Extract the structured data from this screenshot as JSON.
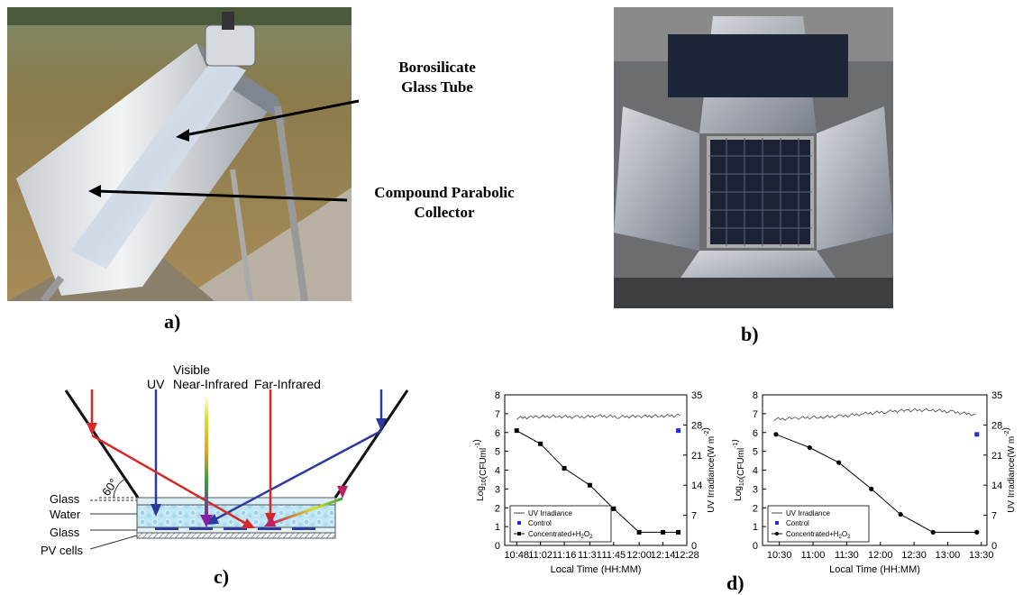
{
  "panels": {
    "a": {
      "label": "a)",
      "annotations": [
        "Borosilicate",
        "Glass Tube",
        "Compound Parabolic",
        "Collector"
      ]
    },
    "b": {
      "label": "b)"
    },
    "c": {
      "label": "c)",
      "rays": [
        "UV",
        "Visible",
        "Near-Infrared",
        "Far-Infrared"
      ],
      "angle": "60°",
      "layers": [
        "Glass",
        "Water",
        "Glass",
        "PV cells"
      ]
    },
    "d": {
      "label": "d)"
    }
  },
  "colors": {
    "uv": "#2b3a9c",
    "far_ir": "#d62828",
    "control": "#1f2bd6"
  },
  "chart_data": [
    {
      "type": "line",
      "xlabel": "Local Time (HH:MM)",
      "ylabel": "Log10(CFUml-1)",
      "ylabel_main": "Log",
      "ylabel_sub": "10",
      "ylabel_rest": "(CFUml",
      "ylabel_sup": "-1",
      "ylabel_end": ")",
      "y2label": "UV Irradiance(W m-2)",
      "y2label_main": "UV Irradiance(W m",
      "y2label_sup": "-2",
      "y2label_end": ")",
      "x_ticks": [
        "10:48",
        "11:02",
        "11:16",
        "11:31",
        "11:45",
        "12:00",
        "12:14",
        "12:28"
      ],
      "x_tick_minutes": [
        648,
        662,
        676,
        691,
        705,
        720,
        734,
        748
      ],
      "xlim_minutes": [
        641,
        748
      ],
      "ylim": [
        0,
        8
      ],
      "y_ticks": [
        "0",
        "1",
        "2",
        "3",
        "4",
        "5",
        "6",
        "7",
        "8"
      ],
      "y2lim": [
        0,
        35
      ],
      "y2_ticks": [
        "0",
        "7",
        "14",
        "21",
        "28",
        "35"
      ],
      "legend": [
        "UV Irradiance",
        "Control",
        "Concentrated+H2O2"
      ],
      "legend_conc_main": "Concentrated+H",
      "legend_conc_sub1": "2",
      "legend_conc_o": "O",
      "legend_conc_sub2": "2",
      "series": [
        {
          "name": "UV Irradiance",
          "axis": "right",
          "x_minutes": [
            648,
            660,
            672,
            684,
            696,
            708,
            720,
            732,
            744
          ],
          "values": [
            29.6,
            29.9,
            30.0,
            29.8,
            30.1,
            29.9,
            30.0,
            30.1,
            30.2
          ]
        },
        {
          "name": "Control",
          "x_minutes": [
            743
          ],
          "values": [
            6.1
          ]
        },
        {
          "name": "Concentrated+H2O2",
          "x_minutes": [
            648,
            662,
            676,
            691,
            705,
            720,
            734,
            743
          ],
          "values": [
            6.1,
            5.4,
            4.1,
            3.2,
            1.95,
            0.7,
            0.7,
            0.7
          ]
        }
      ]
    },
    {
      "type": "line",
      "xlabel": "Local Time (HH:MM)",
      "ylabel": "Log10(CFUml-1)",
      "ylabel_main": "Log",
      "ylabel_sub": "10",
      "ylabel_rest": "(CFUml",
      "ylabel_sup": "-1",
      "ylabel_end": ")",
      "y2label": "UV Irradiance(W m-2)",
      "y2label_main": "UV Irradiance(W m",
      "y2label_sup": "-2",
      "y2label_end": ")",
      "x_ticks": [
        "10:30",
        "11:00",
        "11:30",
        "12:00",
        "12:30",
        "13:00",
        "13:30"
      ],
      "x_tick_minutes": [
        630,
        660,
        690,
        720,
        750,
        780,
        810
      ],
      "xlim_minutes": [
        615,
        815
      ],
      "ylim": [
        0,
        8
      ],
      "y_ticks": [
        "0",
        "1",
        "2",
        "3",
        "4",
        "5",
        "6",
        "7",
        "8"
      ],
      "y2lim": [
        0,
        35
      ],
      "y2_ticks": [
        "0",
        "7",
        "14",
        "21",
        "28",
        "35"
      ],
      "legend": [
        "UV Irradiance",
        "Control",
        "Concentrated+H2O2"
      ],
      "legend_conc_main": "Concentrated+H",
      "legend_conc_sub1": "2",
      "legend_conc_o": "O",
      "legend_conc_sub2": "2",
      "series": [
        {
          "name": "UV Irradiance",
          "axis": "right",
          "x_minutes": [
            625,
            645,
            665,
            685,
            705,
            725,
            745,
            765,
            785,
            805
          ],
          "values": [
            29.3,
            29.6,
            29.8,
            30.0,
            30.6,
            31.1,
            31.4,
            31.5,
            31.0,
            30.4
          ]
        },
        {
          "name": "Control",
          "x_minutes": [
            806
          ],
          "values": [
            5.9
          ]
        },
        {
          "name": "Concentrated+H2O2",
          "x_minutes": [
            627,
            657,
            683,
            712,
            738,
            767,
            806
          ],
          "values": [
            5.9,
            5.2,
            4.4,
            3.0,
            1.65,
            0.7,
            0.7
          ]
        }
      ]
    }
  ]
}
